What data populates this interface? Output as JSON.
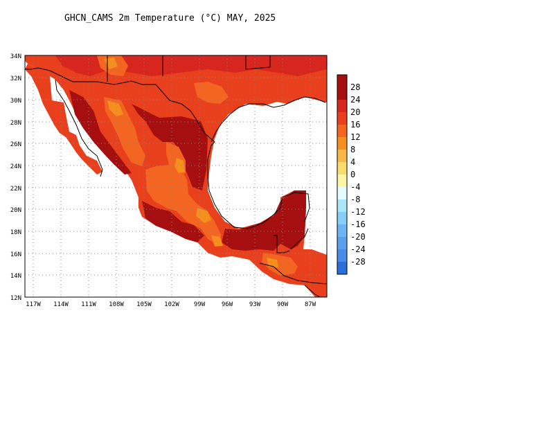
{
  "title": "GHCN_CAMS 2m Temperature (°C) MAY, 2025",
  "map": {
    "lat_labels": [
      "34N",
      "32N",
      "30N",
      "28N",
      "26N",
      "24N",
      "22N",
      "20N",
      "18N",
      "16N",
      "14N",
      "12N"
    ],
    "lon_labels": [
      "117W",
      "114W",
      "111W",
      "108W",
      "105W",
      "102W",
      "99W",
      "96W",
      "93W",
      "90W",
      "87W"
    ],
    "gridlines": true
  },
  "colorbar": {
    "labels": [
      "28",
      "24",
      "20",
      "16",
      "12",
      "8",
      "4",
      "0",
      "-4",
      "-8",
      "-12",
      "-16",
      "-20",
      "-24",
      "-28"
    ],
    "colors": [
      "#a50f0f",
      "#d7261e",
      "#e8401c",
      "#f26622",
      "#f5901f",
      "#f8b845",
      "#fadc6e",
      "#fcf5a6",
      "#e6fbff",
      "#aae6fa",
      "#87cdf5",
      "#6eb4f0",
      "#5aa0eb",
      "#468ce6",
      "#2a6fd9"
    ]
  }
}
